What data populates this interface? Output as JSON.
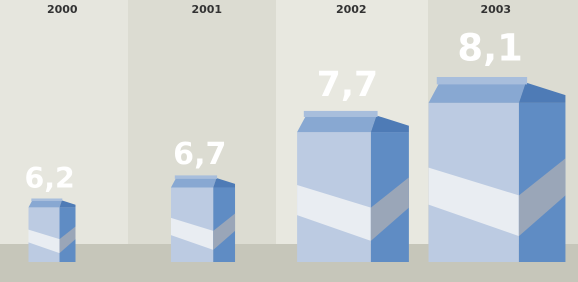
{
  "chart_data": {
    "type": "pictogram",
    "categories": [
      "2000",
      "2001",
      "2002",
      "2003"
    ],
    "values": [
      6.2,
      6.7,
      7.7,
      8.1
    ],
    "value_labels": [
      "6,2",
      "6,7",
      "7,7",
      "8,1"
    ],
    "color": "#5f8cc4"
  }
}
